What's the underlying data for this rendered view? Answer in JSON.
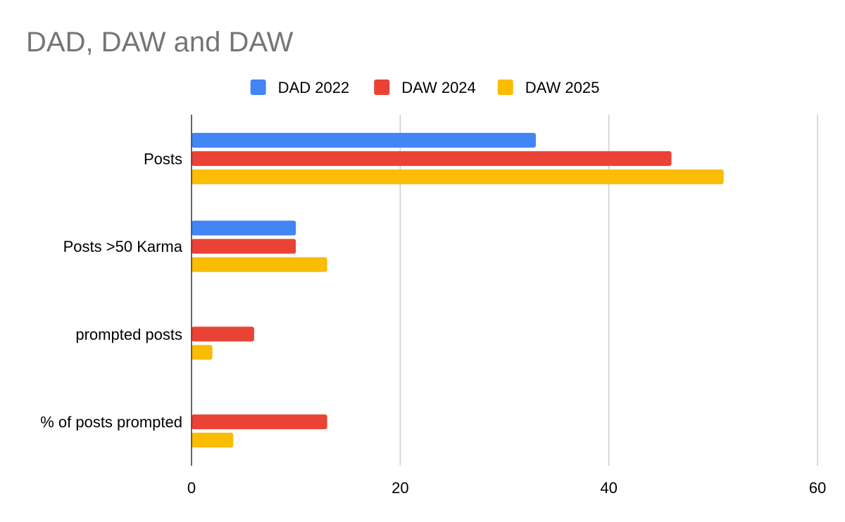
{
  "chart_data": {
    "type": "bar",
    "orientation": "horizontal",
    "title": "DAD, DAW and DAW",
    "categories": [
      "Posts",
      "Posts >50 Karma",
      "prompted posts",
      "% of posts prompted"
    ],
    "series": [
      {
        "name": "DAD 2022",
        "color": "#4285f4",
        "values": [
          33,
          10,
          null,
          null
        ]
      },
      {
        "name": "DAW 2024",
        "color": "#ea4335",
        "values": [
          46,
          10,
          6,
          13
        ]
      },
      {
        "name": "DAW 2025",
        "color": "#fbbc04",
        "values": [
          51,
          13,
          2,
          4
        ]
      }
    ],
    "xlim": [
      0,
      60
    ],
    "xticks": [
      "0",
      "20",
      "40",
      "60"
    ],
    "grid": true,
    "legend_position": "top"
  }
}
